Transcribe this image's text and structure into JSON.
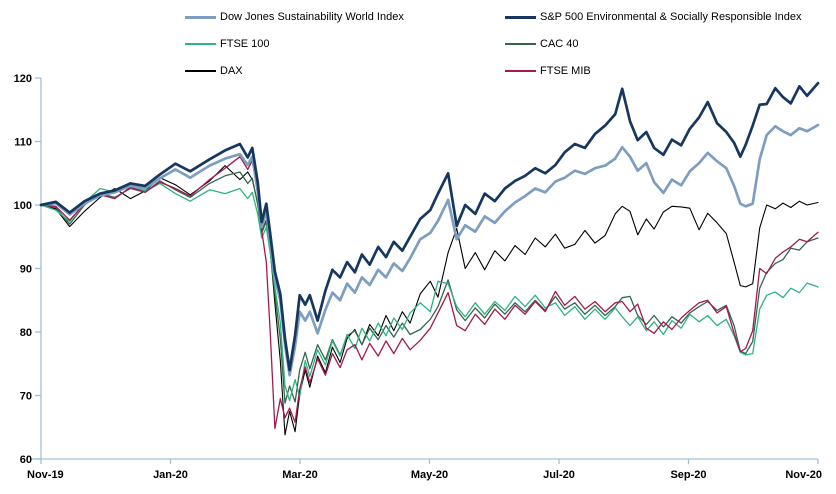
{
  "chart_data": {
    "type": "line",
    "title": "",
    "axis_color": "#A3BFD7",
    "text_color": "#000000",
    "background": "#FFFFFF",
    "grid": "off",
    "legend_position": "top-two-columns",
    "x_axis": {
      "tick_labels": [
        "Nov-19",
        "Jan-20",
        "Mar-20",
        "May-20",
        "Jul-20",
        "Sep-20",
        "Nov-20"
      ]
    },
    "y_axis": {
      "min": 60,
      "max": 120,
      "step": 10,
      "tick_labels": [
        "60",
        "70",
        "80",
        "90",
        "100",
        "110",
        "120"
      ]
    },
    "x_percent": [
      0,
      1.9,
      3.7,
      5.6,
      7.6,
      9.5,
      11.5,
      13.4,
      15.3,
      17.3,
      19.2,
      21.7,
      23.7,
      25.6,
      26.6,
      27.2,
      27.9,
      28.4,
      29.0,
      29.5,
      30.1,
      30.8,
      31.4,
      32.0,
      32.7,
      33.3,
      34.0,
      34.6,
      35.6,
      36.6,
      37.5,
      38.5,
      39.4,
      40.4,
      41.3,
      42.3,
      43.4,
      44.4,
      45.4,
      46.5,
      47.5,
      48.8,
      50.1,
      51.1,
      52.4,
      53.5,
      54.6,
      55.9,
      57.1,
      58.4,
      59.7,
      61.0,
      62.3,
      63.6,
      64.9,
      66.2,
      67.4,
      68.7,
      70.0,
      71.3,
      72.6,
      73.9,
      74.8,
      75.8,
      76.8,
      77.9,
      78.9,
      80.1,
      81.2,
      82.4,
      83.5,
      84.7,
      85.8,
      87.0,
      88.2,
      89.2,
      90.0,
      90.7,
      91.6,
      92.5,
      93.4,
      94.5,
      95.5,
      96.5,
      97.6,
      98.6,
      100
    ],
    "series": [
      {
        "name": "Dow Jones Sustainability World Index",
        "color": "#7D9EC0",
        "width": 2.7,
        "values": [
          100,
          100.3,
          98.5,
          100.2,
          101.5,
          102,
          103,
          102.6,
          104.2,
          105.6,
          104.3,
          106.2,
          107.3,
          108,
          106.3,
          107.6,
          102.3,
          96.5,
          99,
          94.5,
          88.5,
          85,
          78,
          73.2,
          77.8,
          83.2,
          81.8,
          83.2,
          79.8,
          83.5,
          86.2,
          85,
          87.6,
          86.2,
          88.6,
          87.4,
          89.8,
          88.6,
          90.8,
          89.6,
          91.6,
          94.6,
          95.6,
          97.5,
          100.8,
          94.6,
          96.8,
          95.8,
          98.2,
          97.2,
          99,
          100.4,
          101.4,
          102.6,
          102,
          103.7,
          104.3,
          105.4,
          104.9,
          105.8,
          106.2,
          107.3,
          109.1,
          107.6,
          105.4,
          106.6,
          103.6,
          101.9,
          104,
          103.1,
          105.3,
          106.6,
          108.2,
          106.9,
          105.8,
          103,
          100.2,
          99.8,
          100.2,
          107.2,
          111,
          112.4,
          111.6,
          111,
          112.1,
          111.6,
          112.6
        ]
      },
      {
        "name": "S&P 500 Environmental & Socially Responsible Index",
        "color": "#17375E",
        "width": 2.7,
        "values": [
          100,
          100.5,
          98.8,
          100.6,
          101.8,
          102.3,
          103.4,
          103,
          104.8,
          106.5,
          105.3,
          107.2,
          108.6,
          109.6,
          107.5,
          109,
          103.5,
          97.3,
          100.2,
          95.5,
          89.5,
          86,
          79,
          74,
          79.5,
          85.8,
          84.3,
          85.8,
          81.8,
          86.5,
          89.8,
          88.6,
          91,
          89.4,
          92.2,
          90.6,
          93.4,
          91.8,
          94.2,
          92.8,
          95,
          97.8,
          99.2,
          101.8,
          105,
          96.7,
          100,
          98.6,
          101.8,
          100.6,
          102.6,
          103.8,
          104.6,
          105.8,
          105,
          106.3,
          108.3,
          109.6,
          109,
          111.2,
          112.5,
          114.3,
          118.3,
          113.2,
          110.2,
          111.5,
          109,
          107.9,
          110.3,
          109.4,
          112,
          113.8,
          116.2,
          112.9,
          111.5,
          109.8,
          107.6,
          109.5,
          112.5,
          115.8,
          115.9,
          118.4,
          117,
          116,
          118.7,
          117.2,
          119.2
        ]
      },
      {
        "name": "FTSE 100",
        "color": "#2FB380",
        "width": 1.3,
        "values": [
          100,
          99.2,
          97.4,
          100.4,
          102.6,
          102,
          103,
          102.2,
          103.4,
          101.8,
          100.6,
          102.4,
          101.8,
          102.6,
          101,
          102,
          98.5,
          94.8,
          96.5,
          92.5,
          87,
          81.5,
          71.5,
          69.2,
          72.5,
          69.8,
          75.5,
          73,
          77.2,
          74.8,
          78.6,
          76.2,
          79.6,
          77.4,
          80.6,
          78.6,
          81.4,
          79.4,
          82.2,
          80.4,
          83,
          84.6,
          83.2,
          88,
          87.6,
          84,
          82.4,
          84.6,
          82.8,
          84.8,
          83.4,
          85.6,
          84,
          85.8,
          83.8,
          84.6,
          82.6,
          84,
          82,
          83.6,
          82,
          83.8,
          82.4,
          81,
          82.4,
          80.2,
          81.6,
          79.6,
          81.8,
          80.6,
          82.8,
          81.6,
          82.6,
          81,
          82,
          79.4,
          76.8,
          76.4,
          76.6,
          83.6,
          85.8,
          86.3,
          85.4,
          86.9,
          86.2,
          87.7,
          87.1
        ]
      },
      {
        "name": "CAC 40",
        "color": "#35664B",
        "width": 1.3,
        "values": [
          100,
          99.6,
          97,
          100,
          101.8,
          101.2,
          102.6,
          102,
          103.8,
          102.4,
          101.2,
          103.4,
          104.6,
          105.2,
          103.4,
          104.2,
          100,
          95.6,
          97.4,
          92.8,
          86,
          79,
          68.8,
          71.5,
          69,
          74,
          76.8,
          74.2,
          78,
          75.6,
          78.8,
          76.4,
          79.4,
          80.2,
          78,
          80.6,
          78.8,
          81,
          79.2,
          81.4,
          79.6,
          80.4,
          82,
          84,
          88.2,
          83.5,
          81.8,
          83.8,
          82.2,
          84.4,
          82.8,
          84.6,
          83.2,
          85,
          83.4,
          85.6,
          83.6,
          84.6,
          82.8,
          84.2,
          82.6,
          84,
          85.4,
          85.6,
          82.6,
          81.2,
          82.6,
          80.8,
          82.4,
          81.4,
          83,
          84,
          84.8,
          83.4,
          84.2,
          81,
          77,
          76.6,
          78.5,
          86.9,
          89.4,
          90.8,
          91.4,
          93.2,
          92.9,
          94.2,
          94.8
        ]
      },
      {
        "name": "DAX",
        "color": "#000000",
        "width": 1.1,
        "values": [
          100,
          99.4,
          96.6,
          99,
          101.2,
          102.6,
          101,
          102.2,
          104.3,
          103.2,
          101.6,
          103.8,
          106.2,
          104,
          105.2,
          104,
          100.2,
          95.8,
          97.6,
          93,
          84.5,
          75.5,
          63.8,
          67.5,
          64.3,
          70.2,
          74,
          71.3,
          76.2,
          73.6,
          77.6,
          75.2,
          79,
          80.4,
          78,
          81.2,
          79.4,
          82.6,
          80.2,
          83.2,
          81.4,
          86,
          88,
          85.5,
          92.5,
          96.3,
          90,
          92.5,
          89.8,
          92.8,
          91.2,
          93.6,
          92.2,
          94.8,
          93.4,
          95.4,
          93.2,
          93.8,
          96,
          94,
          95.2,
          98.6,
          99.8,
          99,
          95.3,
          97.8,
          96.2,
          98.9,
          99.8,
          99.7,
          99.5,
          96.1,
          98.7,
          97.2,
          95.5,
          91,
          87.3,
          87.1,
          87.6,
          96.4,
          100,
          99.4,
          100.3,
          99.6,
          100.6,
          100,
          100.4
        ]
      },
      {
        "name": "FTSE MIB",
        "color": "#A21A4F",
        "width": 1.3,
        "values": [
          100,
          99.8,
          97.6,
          100.2,
          101.6,
          101,
          102.8,
          102,
          103.6,
          102.6,
          101.4,
          104,
          105.8,
          107.6,
          105.6,
          107,
          101.5,
          96,
          91,
          80,
          64.8,
          69.5,
          66.5,
          68,
          65.8,
          71,
          74.5,
          72,
          75.8,
          73.2,
          76.6,
          74.4,
          77.2,
          78,
          75.6,
          78.2,
          76.2,
          78.6,
          76.6,
          79,
          77.2,
          78.7,
          80.6,
          83,
          86.2,
          81,
          80.2,
          82.8,
          81.2,
          83.6,
          82,
          84.2,
          82.8,
          84.8,
          83.2,
          86.4,
          84.2,
          85.6,
          83.6,
          84.8,
          83.2,
          84.6,
          84.8,
          83.2,
          84.4,
          80.6,
          79.8,
          81.6,
          80.4,
          82.2,
          83.4,
          84.6,
          85,
          83,
          84,
          79.8,
          76.9,
          77.4,
          80.2,
          90,
          89.2,
          91.6,
          92.6,
          93.4,
          94.6,
          94.2,
          95.7
        ]
      }
    ]
  }
}
